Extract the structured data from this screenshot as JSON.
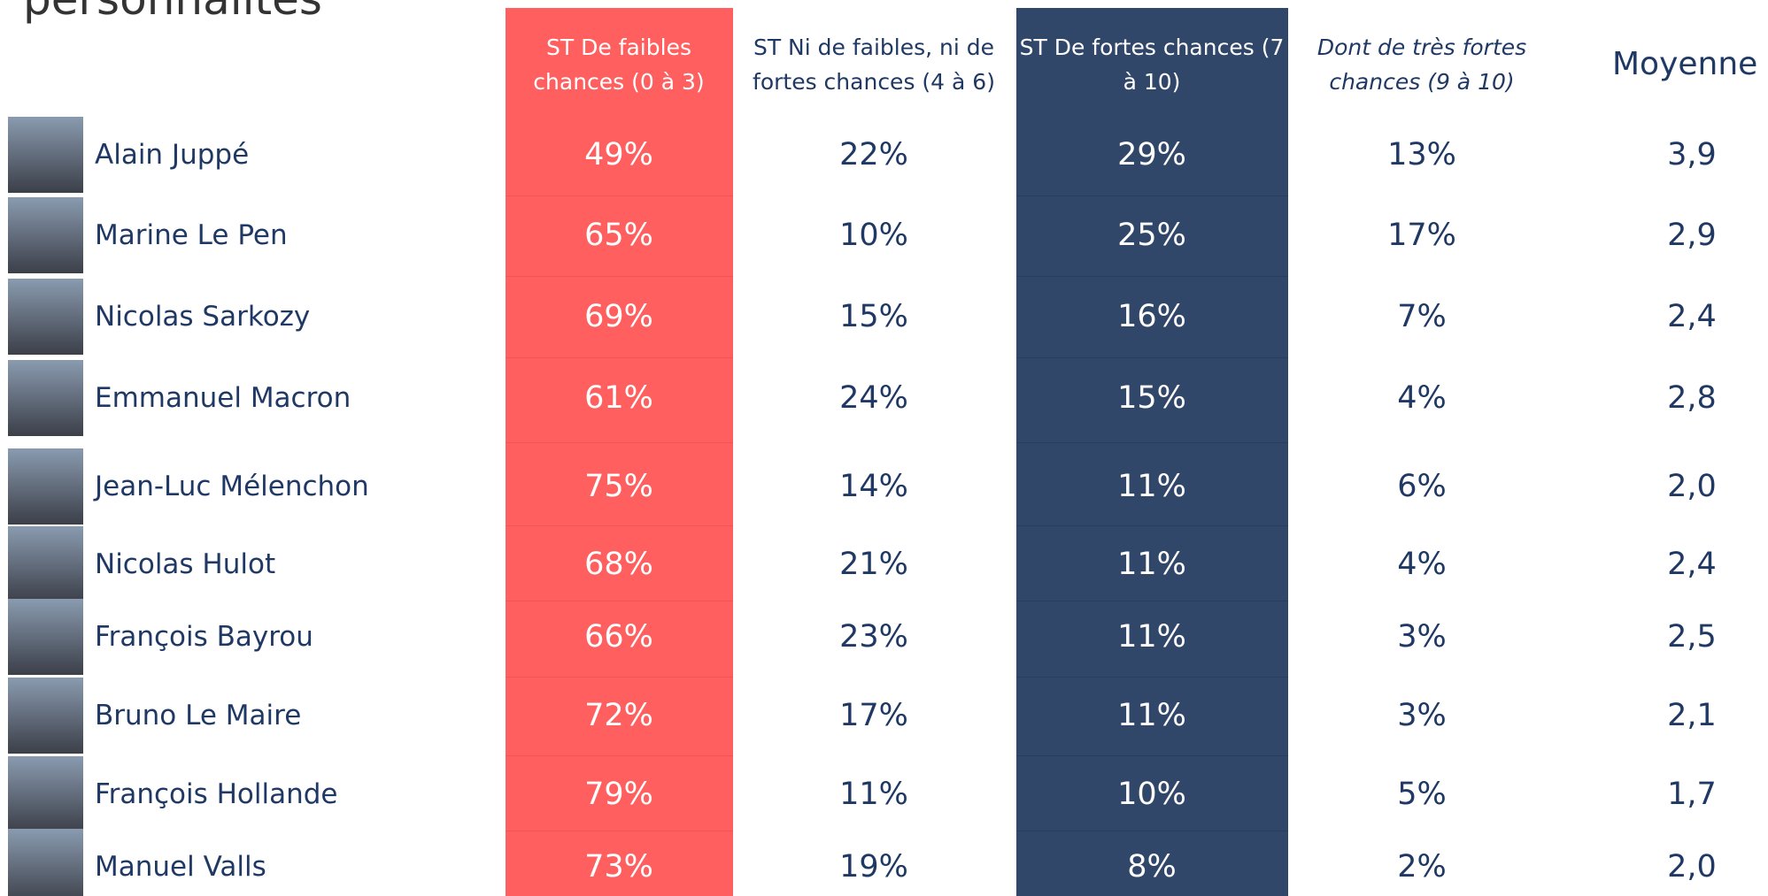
{
  "title": "personnalités",
  "table": {
    "columns": [
      "ST De faibles chances (0 à 3)",
      "ST Ni de faibles, ni de fortes chances (4 à 6)",
      "ST De fortes chances (7 à 10)",
      "Dont de très fortes chances (9 à 10)",
      "Moyenne"
    ],
    "rows": [
      [
        "Alain Juppé",
        "49%",
        "22%",
        "29%",
        "13%",
        "3,9"
      ],
      [
        "Marine Le Pen",
        "65%",
        "10%",
        "25%",
        "17%",
        "2,9"
      ],
      [
        "Nicolas Sarkozy",
        "69%",
        "15%",
        "16%",
        "7%",
        "2,4"
      ],
      [
        "Emmanuel Macron",
        "61%",
        "24%",
        "15%",
        "4%",
        "2,8"
      ],
      [
        "Jean-Luc Mélenchon",
        "75%",
        "14%",
        "11%",
        "6%",
        "2,0"
      ],
      [
        "Nicolas Hulot",
        "68%",
        "21%",
        "11%",
        "4%",
        "2,4"
      ],
      [
        "François Bayrou",
        "66%",
        "23%",
        "11%",
        "3%",
        "2,5"
      ],
      [
        "Bruno Le Maire",
        "72%",
        "17%",
        "11%",
        "3%",
        "2,1"
      ],
      [
        "François Hollande",
        "79%",
        "11%",
        "10%",
        "5%",
        "1,7"
      ],
      [
        "Manuel Valls",
        "73%",
        "19%",
        "8%",
        "2%",
        "2,0"
      ]
    ]
  }
}
